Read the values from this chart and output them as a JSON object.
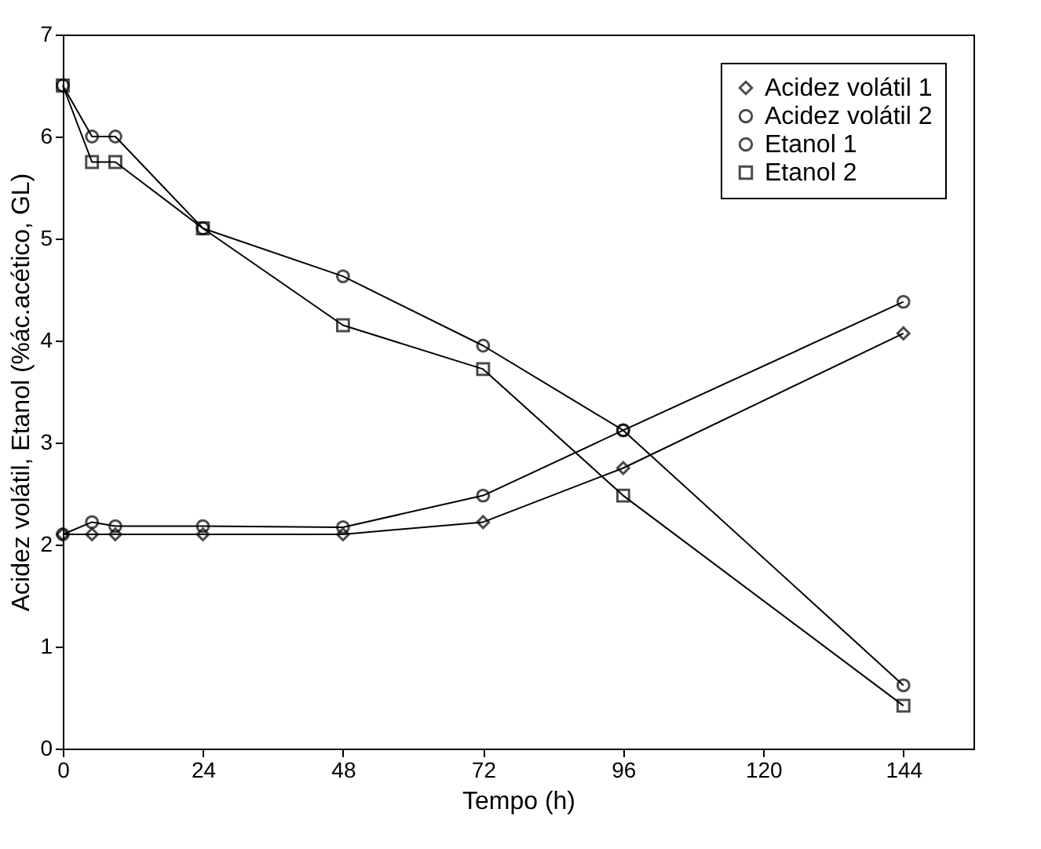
{
  "chart_data": {
    "type": "line",
    "xlabel": "Tempo (h)",
    "ylabel": "Acidez volátil, Etanol (%ác.acético, GL)",
    "x": [
      0,
      5,
      9,
      24,
      48,
      72,
      96,
      144
    ],
    "series": [
      {
        "name": "Acidez volátil 1",
        "color": "#000000",
        "marker": "diamond",
        "values": [
          2.1,
          2.1,
          2.1,
          2.1,
          2.1,
          2.22,
          2.75,
          4.07
        ]
      },
      {
        "name": "Acidez volátil 2",
        "color": "#000000",
        "marker": "circle",
        "values": [
          2.1,
          2.22,
          2.18,
          2.18,
          2.17,
          2.48,
          3.12,
          4.38
        ]
      },
      {
        "name": "Etanol 1",
        "color": "#000000",
        "marker": "circle",
        "values": [
          6.5,
          6.0,
          6.0,
          5.1,
          4.63,
          3.95,
          3.12,
          0.62
        ]
      },
      {
        "name": "Etanol 2",
        "color": "#000000",
        "marker": "square",
        "values": [
          6.5,
          5.75,
          5.75,
          5.1,
          4.15,
          3.72,
          2.48,
          0.42
        ]
      }
    ],
    "xlim": [
      0,
      156
    ],
    "xticks": [
      0,
      24,
      48,
      72,
      96,
      120,
      144
    ],
    "ylim": [
      0,
      7
    ],
    "yticks": [
      0,
      1,
      2,
      3,
      4,
      5,
      6,
      7
    ],
    "grid": false,
    "legend": "top right",
    "line_style": "solid"
  }
}
